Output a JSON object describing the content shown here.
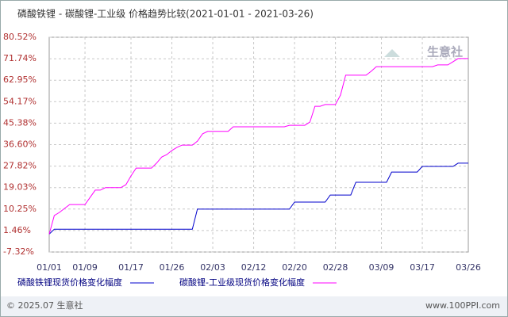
{
  "chart_data": {
    "type": "line",
    "title": "磷酸铁锂 - 碳酸锂-工业级 价格趋势比较(2021-01-01 - 2021-03-26)",
    "watermark": "生意社",
    "categories": [
      "01/01",
      null,
      null,
      null,
      null,
      null,
      null,
      "01/09",
      null,
      null,
      null,
      null,
      null,
      null,
      null,
      null,
      "01/17",
      null,
      null,
      null,
      null,
      null,
      null,
      null,
      "01/26",
      null,
      null,
      null,
      null,
      null,
      null,
      null,
      "02/03",
      null,
      null,
      null,
      null,
      null,
      null,
      null,
      "02/12",
      null,
      null,
      null,
      null,
      null,
      null,
      null,
      "02/20",
      null,
      null,
      null,
      null,
      null,
      null,
      null,
      "02/28",
      null,
      null,
      null,
      null,
      null,
      null,
      null,
      null,
      "03/09",
      null,
      null,
      null,
      null,
      null,
      null,
      null,
      "03/17",
      null,
      null,
      null,
      null,
      null,
      null,
      null,
      null,
      "03/26"
    ],
    "series": [
      {
        "name": "磷酸铁锂现货价格变化幅度",
        "color": "#0000cc",
        "values": [
          0,
          2,
          2,
          2,
          2,
          2,
          2,
          2,
          2,
          2,
          2,
          2,
          2,
          2,
          2,
          2,
          2,
          2,
          2,
          2,
          2,
          2,
          2,
          2,
          2,
          2,
          2,
          2,
          2,
          10.2,
          10.2,
          10.2,
          10.2,
          10.2,
          10.2,
          10.2,
          10.2,
          10.2,
          10.2,
          10.2,
          10.2,
          10.2,
          10.2,
          10.2,
          10.2,
          10.2,
          10.2,
          10.2,
          13.1,
          13.1,
          13.1,
          13.1,
          13.1,
          13.1,
          13.1,
          16,
          16,
          16,
          16,
          16,
          21.2,
          21.2,
          21.2,
          21.2,
          21.2,
          21.2,
          21.2,
          25.4,
          25.4,
          25.4,
          25.4,
          25.4,
          25.4,
          27.7,
          27.7,
          27.7,
          27.7,
          27.7,
          27.7,
          27.7,
          29,
          29,
          29
        ]
      },
      {
        "name": "碳酸锂-工业级现货价格变化幅度",
        "color": "#ff00ff",
        "values": [
          0,
          7.6,
          8.9,
          10.5,
          12.1,
          12.1,
          12.1,
          12.1,
          15,
          18,
          18,
          19,
          19,
          19,
          19,
          20.2,
          23.8,
          27,
          27,
          27,
          27,
          29,
          31.5,
          32.5,
          34.2,
          35.5,
          36.4,
          36.4,
          36.4,
          38,
          41,
          42,
          42,
          42,
          42,
          42,
          43.9,
          43.9,
          43.9,
          43.9,
          43.9,
          43.9,
          43.9,
          43.9,
          43.9,
          43.9,
          43.9,
          44.5,
          44.5,
          44.5,
          44.5,
          45.8,
          52.3,
          52.3,
          53,
          53,
          53,
          56.9,
          65,
          65,
          65,
          65,
          65,
          66.6,
          68.5,
          68.5,
          68.5,
          68.5,
          68.5,
          68.5,
          68.5,
          68.5,
          68.5,
          68.5,
          68.5,
          68.5,
          69.2,
          69.2,
          69.2,
          70.5,
          71.8,
          71.8,
          71.8
        ]
      }
    ],
    "ylim": [
      -7.32,
      80.52
    ],
    "yticks": [
      {
        "value": -7.32,
        "label": "-7.32%"
      },
      {
        "value": 1.46,
        "label": "1.46%"
      },
      {
        "value": 10.25,
        "label": "10.25%"
      },
      {
        "value": 19.03,
        "label": "19.03%"
      },
      {
        "value": 27.82,
        "label": "27.82%"
      },
      {
        "value": 36.6,
        "label": "36.60%"
      },
      {
        "value": 45.38,
        "label": "45.38%"
      },
      {
        "value": 54.17,
        "label": "54.17%"
      },
      {
        "value": 62.95,
        "label": "62.95%"
      },
      {
        "value": 71.74,
        "label": "71.74%"
      },
      {
        "value": 80.52,
        "label": "80.52%"
      }
    ],
    "grid": true
  },
  "footer": {
    "left": "© 2025.07 生意社",
    "right": "www.100PPI.com"
  }
}
